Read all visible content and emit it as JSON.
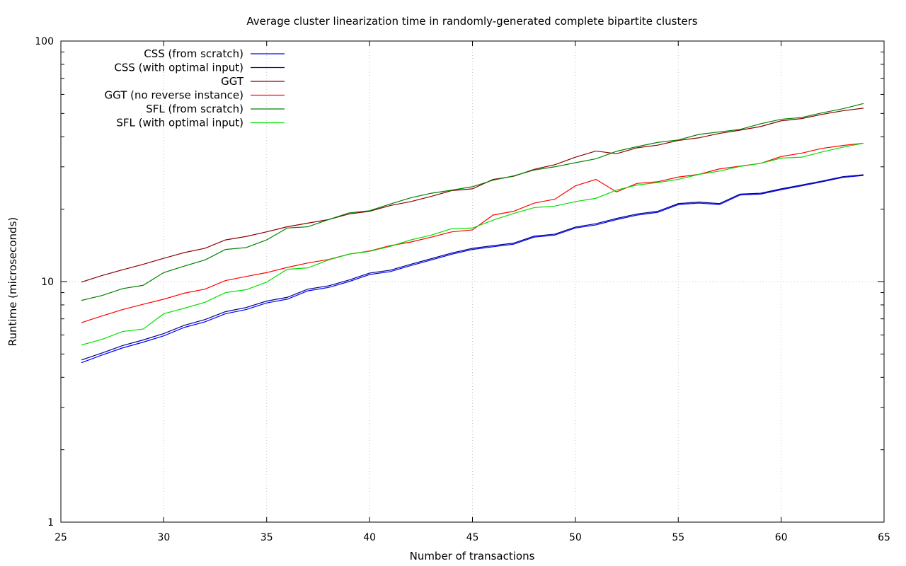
{
  "chart_data": {
    "type": "line",
    "title": "Average cluster linearization time in randomly-generated complete bipartite clusters",
    "xlabel": "Number of transactions",
    "ylabel": "Runtime (microseconds)",
    "xlim": [
      25,
      65
    ],
    "ylim": [
      1,
      100
    ],
    "yscale": "log",
    "xticks": [
      25,
      30,
      35,
      40,
      45,
      50,
      55,
      60,
      65
    ],
    "yticks_major": [
      1,
      10,
      100
    ],
    "yticks_minor": [
      2,
      3,
      4,
      5,
      6,
      7,
      8,
      9,
      20,
      30,
      40,
      50,
      60,
      70,
      80,
      90
    ],
    "grid": true,
    "legend_position": "top-left",
    "x": [
      26,
      27,
      28,
      29,
      30,
      31,
      32,
      33,
      34,
      35,
      36,
      37,
      38,
      39,
      40,
      41,
      42,
      43,
      44,
      45,
      46,
      47,
      48,
      49,
      50,
      51,
      52,
      53,
      54,
      55,
      56,
      57,
      58,
      59,
      60,
      61,
      62,
      63,
      64
    ],
    "series": [
      {
        "name": "CSS (from scratch)",
        "color": "#0000ff",
        "values": [
          4.6,
          4.95,
          5.3,
          5.6,
          5.95,
          6.45,
          6.8,
          7.35,
          7.65,
          8.15,
          8.45,
          9.15,
          9.45,
          10.0,
          10.7,
          11.0,
          11.65,
          12.3,
          13.0,
          13.6,
          13.95,
          14.3,
          15.3,
          15.6,
          16.7,
          17.2,
          18.1,
          18.9,
          19.4,
          20.9,
          21.2,
          20.9,
          22.9,
          23.1,
          24.1,
          25.0,
          26.0,
          27.1,
          27.6
        ]
      },
      {
        "name": "CSS (with optimal input)",
        "color": "#00008b",
        "values": [
          4.72,
          5.05,
          5.42,
          5.72,
          6.08,
          6.58,
          6.95,
          7.5,
          7.8,
          8.3,
          8.6,
          9.3,
          9.6,
          10.15,
          10.85,
          11.15,
          11.8,
          12.45,
          13.15,
          13.75,
          14.1,
          14.45,
          15.45,
          15.75,
          16.85,
          17.4,
          18.3,
          19.1,
          19.6,
          21.1,
          21.4,
          21.1,
          23.1,
          23.3,
          24.3,
          25.2,
          26.2,
          27.3,
          27.8
        ]
      },
      {
        "name": "GGT",
        "color": "#8b0000",
        "values": [
          9.95,
          10.6,
          11.2,
          11.8,
          12.5,
          13.2,
          13.75,
          14.9,
          15.4,
          16.1,
          16.9,
          17.5,
          18.1,
          19.1,
          19.6,
          20.7,
          21.5,
          22.6,
          23.9,
          24.3,
          26.6,
          27.4,
          29.3,
          30.6,
          32.9,
          34.9,
          34.0,
          36.0,
          36.9,
          38.6,
          39.6,
          41.3,
          42.6,
          44.1,
          46.6,
          47.6,
          49.6,
          51.3,
          52.6
        ]
      },
      {
        "name": "GGT (no reverse instance)",
        "color": "#ff0000",
        "values": [
          6.75,
          7.2,
          7.65,
          8.05,
          8.45,
          8.95,
          9.3,
          10.1,
          10.5,
          10.9,
          11.45,
          11.95,
          12.35,
          13.0,
          13.4,
          14.1,
          14.6,
          15.3,
          16.1,
          16.4,
          18.9,
          19.6,
          21.2,
          22.0,
          25.0,
          26.6,
          23.6,
          25.6,
          26.0,
          27.2,
          27.9,
          29.4,
          30.2,
          31.0,
          33.1,
          34.2,
          35.8,
          36.8,
          37.6
        ]
      },
      {
        "name": "SFL (from scratch)",
        "color": "#008000",
        "values": [
          8.35,
          8.75,
          9.35,
          9.65,
          10.9,
          11.6,
          12.3,
          13.6,
          13.85,
          14.9,
          16.7,
          16.9,
          18.1,
          19.3,
          19.7,
          21.0,
          22.3,
          23.3,
          24.0,
          24.8,
          26.4,
          27.5,
          29.1,
          30.0,
          31.2,
          32.4,
          34.8,
          36.4,
          37.9,
          38.8,
          40.9,
          41.9,
          42.9,
          45.3,
          47.3,
          48.1,
          50.3,
          52.3,
          55.0
        ]
      },
      {
        "name": "SFL (with optimal input)",
        "color": "#00e000",
        "values": [
          5.45,
          5.75,
          6.2,
          6.35,
          7.35,
          7.75,
          8.2,
          9.0,
          9.25,
          9.95,
          11.25,
          11.4,
          12.3,
          13.0,
          13.35,
          14.0,
          14.9,
          15.6,
          16.6,
          16.7,
          18.0,
          19.2,
          20.3,
          20.6,
          21.5,
          22.2,
          24.0,
          25.2,
          25.8,
          26.6,
          27.9,
          28.8,
          30.1,
          31.0,
          32.6,
          32.9,
          34.6,
          36.2,
          37.6
        ]
      }
    ]
  }
}
